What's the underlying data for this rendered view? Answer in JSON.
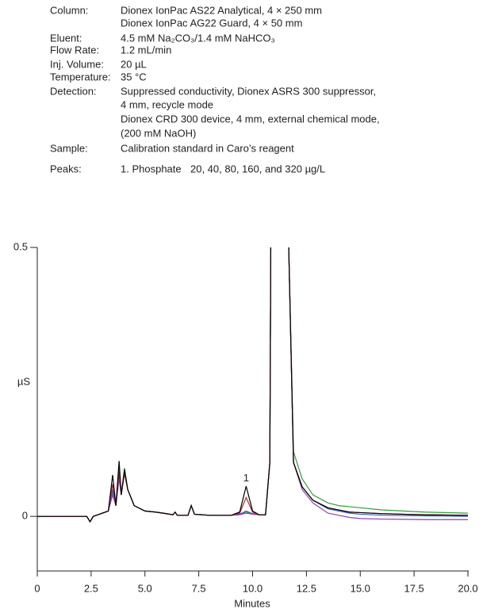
{
  "conditions": [
    {
      "label": "Column:",
      "lines": [
        "Dionex IonPac AS22 Analytical, 4 × 250 mm",
        "Dionex IonPac AG22 Guard, 4 × 50 mm"
      ]
    },
    {
      "label": "Eluent:",
      "lines": [
        "4.5 mM Na₂CO₃/1.4 mM NaHCO₃"
      ]
    },
    {
      "label": "Flow Rate:",
      "lines": [
        "1.2 mL/min"
      ]
    },
    {
      "label": "Inj. Volume:",
      "lines": [
        "20 µL"
      ]
    },
    {
      "label": "Temperature:",
      "lines": [
        "35 °C"
      ]
    },
    {
      "label": "Detection:",
      "lines": [
        "Suppressed conductivity, Dionex ASRS 300 suppressor,",
        "4 mm, recycle mode",
        "Dionex CRD 300 device, 4 mm, external chemical mode,",
        "(200 mM NaOH)"
      ]
    },
    {
      "label": "Sample:",
      "lines": [
        "Calibration standard in Caro’s reagent"
      ]
    }
  ],
  "peaks": {
    "label": "Peaks:",
    "name": "1. Phosphate",
    "amounts": "20, 40, 80, 160, and 320 µg/L"
  },
  "chart_data": {
    "type": "line",
    "x_label": "Minutes",
    "y_label": "µS",
    "xlim": [
      0,
      20
    ],
    "xticks": [
      0,
      2.5,
      {
        "value": 5,
        "label": "5.0"
      },
      7.5,
      {
        "value": 10,
        "label": "10.0"
      },
      12.5,
      {
        "value": 15,
        "label": "15.0"
      },
      17.5,
      {
        "value": 20,
        "label": "20.0"
      }
    ],
    "ylim": [
      -0.1,
      0.5
    ],
    "yticks": [
      0,
      0.5
    ],
    "annotations": [
      {
        "x": 9.7,
        "y": 0.07,
        "text": "1"
      }
    ],
    "x": [
      0,
      2.3,
      2.45,
      2.6,
      3.3,
      3.5,
      3.65,
      3.8,
      3.9,
      4.05,
      4.2,
      4.5,
      5.0,
      5.5,
      6.0,
      6.3,
      6.4,
      6.5,
      7.0,
      7.15,
      7.3,
      8.0,
      9.0,
      9.4,
      9.7,
      10.0,
      10.3,
      10.6,
      10.8,
      10.85,
      11.65,
      11.9,
      12.3,
      12.8,
      13.5,
      14.0,
      14.5,
      15.0,
      16.0,
      18.0,
      20.0
    ],
    "series": [
      {
        "color": "#2e9e3a",
        "values": [
          0,
          0,
          -0.01,
          0,
          0.01,
          0.045,
          0.02,
          0.09,
          0.04,
          0.09,
          0.05,
          0.02,
          0.01,
          0.008,
          0.005,
          0.003,
          0.008,
          0.002,
          0.002,
          0.02,
          0.004,
          0.002,
          0.002,
          0.004,
          0.008,
          0.005,
          0.003,
          0.003,
          0.1,
          0.55,
          0.55,
          0.12,
          0.07,
          0.04,
          0.025,
          0.02,
          0.018,
          0.016,
          0.012,
          0.008,
          0.006
        ]
      },
      {
        "color": "#3a5fcd",
        "values": [
          0,
          0,
          -0.01,
          0,
          0.01,
          0.05,
          0.02,
          0.08,
          0.04,
          0.085,
          0.05,
          0.02,
          0.01,
          0.008,
          0.005,
          0.003,
          0.008,
          0.002,
          0.002,
          0.02,
          0.004,
          0.002,
          0.002,
          0.004,
          0.01,
          0.005,
          0.003,
          0.003,
          0.1,
          0.55,
          0.55,
          0.1,
          0.055,
          0.03,
          0.014,
          0.01,
          0.006,
          0.004,
          0.002,
          0.001,
          0
        ]
      },
      {
        "color": "#8e3fb0",
        "values": [
          0,
          0,
          -0.01,
          0,
          0.01,
          0.04,
          0.02,
          0.07,
          0.04,
          0.08,
          0.05,
          0.02,
          0.01,
          0.008,
          0.005,
          0.003,
          0.008,
          0.002,
          0.002,
          0.02,
          0.004,
          0.002,
          0.002,
          0.003,
          0.006,
          0.004,
          0.003,
          0.003,
          0.1,
          0.55,
          0.55,
          0.1,
          0.05,
          0.025,
          0.006,
          0.002,
          -0.002,
          -0.004,
          -0.005,
          -0.006,
          -0.006
        ]
      },
      {
        "color": "#b02a2a",
        "values": [
          0,
          0,
          -0.01,
          0,
          0.01,
          0.06,
          0.02,
          0.085,
          0.04,
          0.08,
          0.05,
          0.02,
          0.01,
          0.008,
          0.005,
          0.003,
          0.008,
          0.002,
          0.002,
          0.02,
          0.004,
          0.002,
          0.002,
          0.006,
          0.035,
          0.008,
          0.003,
          0.003,
          0.1,
          0.55,
          0.55,
          0.1,
          0.055,
          0.03,
          0.016,
          0.012,
          0.008,
          0.007,
          0.005,
          0.003,
          0.002
        ]
      },
      {
        "color": "#000000",
        "values": [
          0,
          0,
          -0.01,
          0,
          0.01,
          0.077,
          0.02,
          0.103,
          0.04,
          0.087,
          0.05,
          0.02,
          0.01,
          0.008,
          0.005,
          0.003,
          0.008,
          0.002,
          0.002,
          0.02,
          0.004,
          0.002,
          0.002,
          0.008,
          0.056,
          0.01,
          0.003,
          0.003,
          0.1,
          0.55,
          0.55,
          0.1,
          0.055,
          0.03,
          0.016,
          0.012,
          0.008,
          0.007,
          0.005,
          0.003,
          0.002
        ]
      }
    ]
  }
}
